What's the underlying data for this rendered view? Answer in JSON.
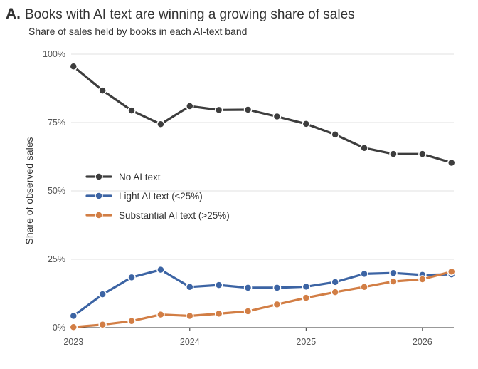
{
  "panel_label": "A.",
  "title": "Books with AI text are winning a growing share of sales",
  "subtitle": "Share of sales held by books in each AI-text band",
  "chart_data": {
    "type": "line",
    "ylabel": "Share of observed sales",
    "xlabel": "",
    "x": [
      2023.0,
      2023.25,
      2023.5,
      2023.75,
      2024.0,
      2024.25,
      2024.5,
      2024.75,
      2025.0,
      2025.25,
      2025.5,
      2025.75,
      2026.0,
      2026.25
    ],
    "xlim": [
      2022.98,
      2026.27
    ],
    "ylim": [
      0,
      1
    ],
    "x_ticks": [
      2023,
      2024,
      2025,
      2026
    ],
    "x_tick_labels": [
      "2023",
      "2024",
      "2025",
      "2026"
    ],
    "y_ticks": [
      0,
      0.25,
      0.5,
      0.75,
      1.0
    ],
    "y_tick_labels": [
      "0%",
      "25%",
      "50%",
      "75%",
      "100%"
    ],
    "grid": "horizontal",
    "legend_position": "center-left",
    "series": [
      {
        "name": "No AI text",
        "color": "#3d3d3d",
        "values": [
          0.955,
          0.867,
          0.794,
          0.744,
          0.81,
          0.796,
          0.797,
          0.772,
          0.745,
          0.706,
          0.657,
          0.635,
          0.635,
          0.603
        ]
      },
      {
        "name": "Light AI text (≤25%)",
        "color": "#3c64a4",
        "values": [
          0.043,
          0.122,
          0.184,
          0.212,
          0.149,
          0.156,
          0.146,
          0.146,
          0.15,
          0.167,
          0.197,
          0.2,
          0.193,
          0.195
        ]
      },
      {
        "name": "Substantial AI text (>25%)",
        "color": "#d27e45",
        "values": [
          0.002,
          0.011,
          0.024,
          0.048,
          0.043,
          0.051,
          0.06,
          0.085,
          0.109,
          0.13,
          0.149,
          0.169,
          0.177,
          0.205
        ]
      }
    ]
  }
}
